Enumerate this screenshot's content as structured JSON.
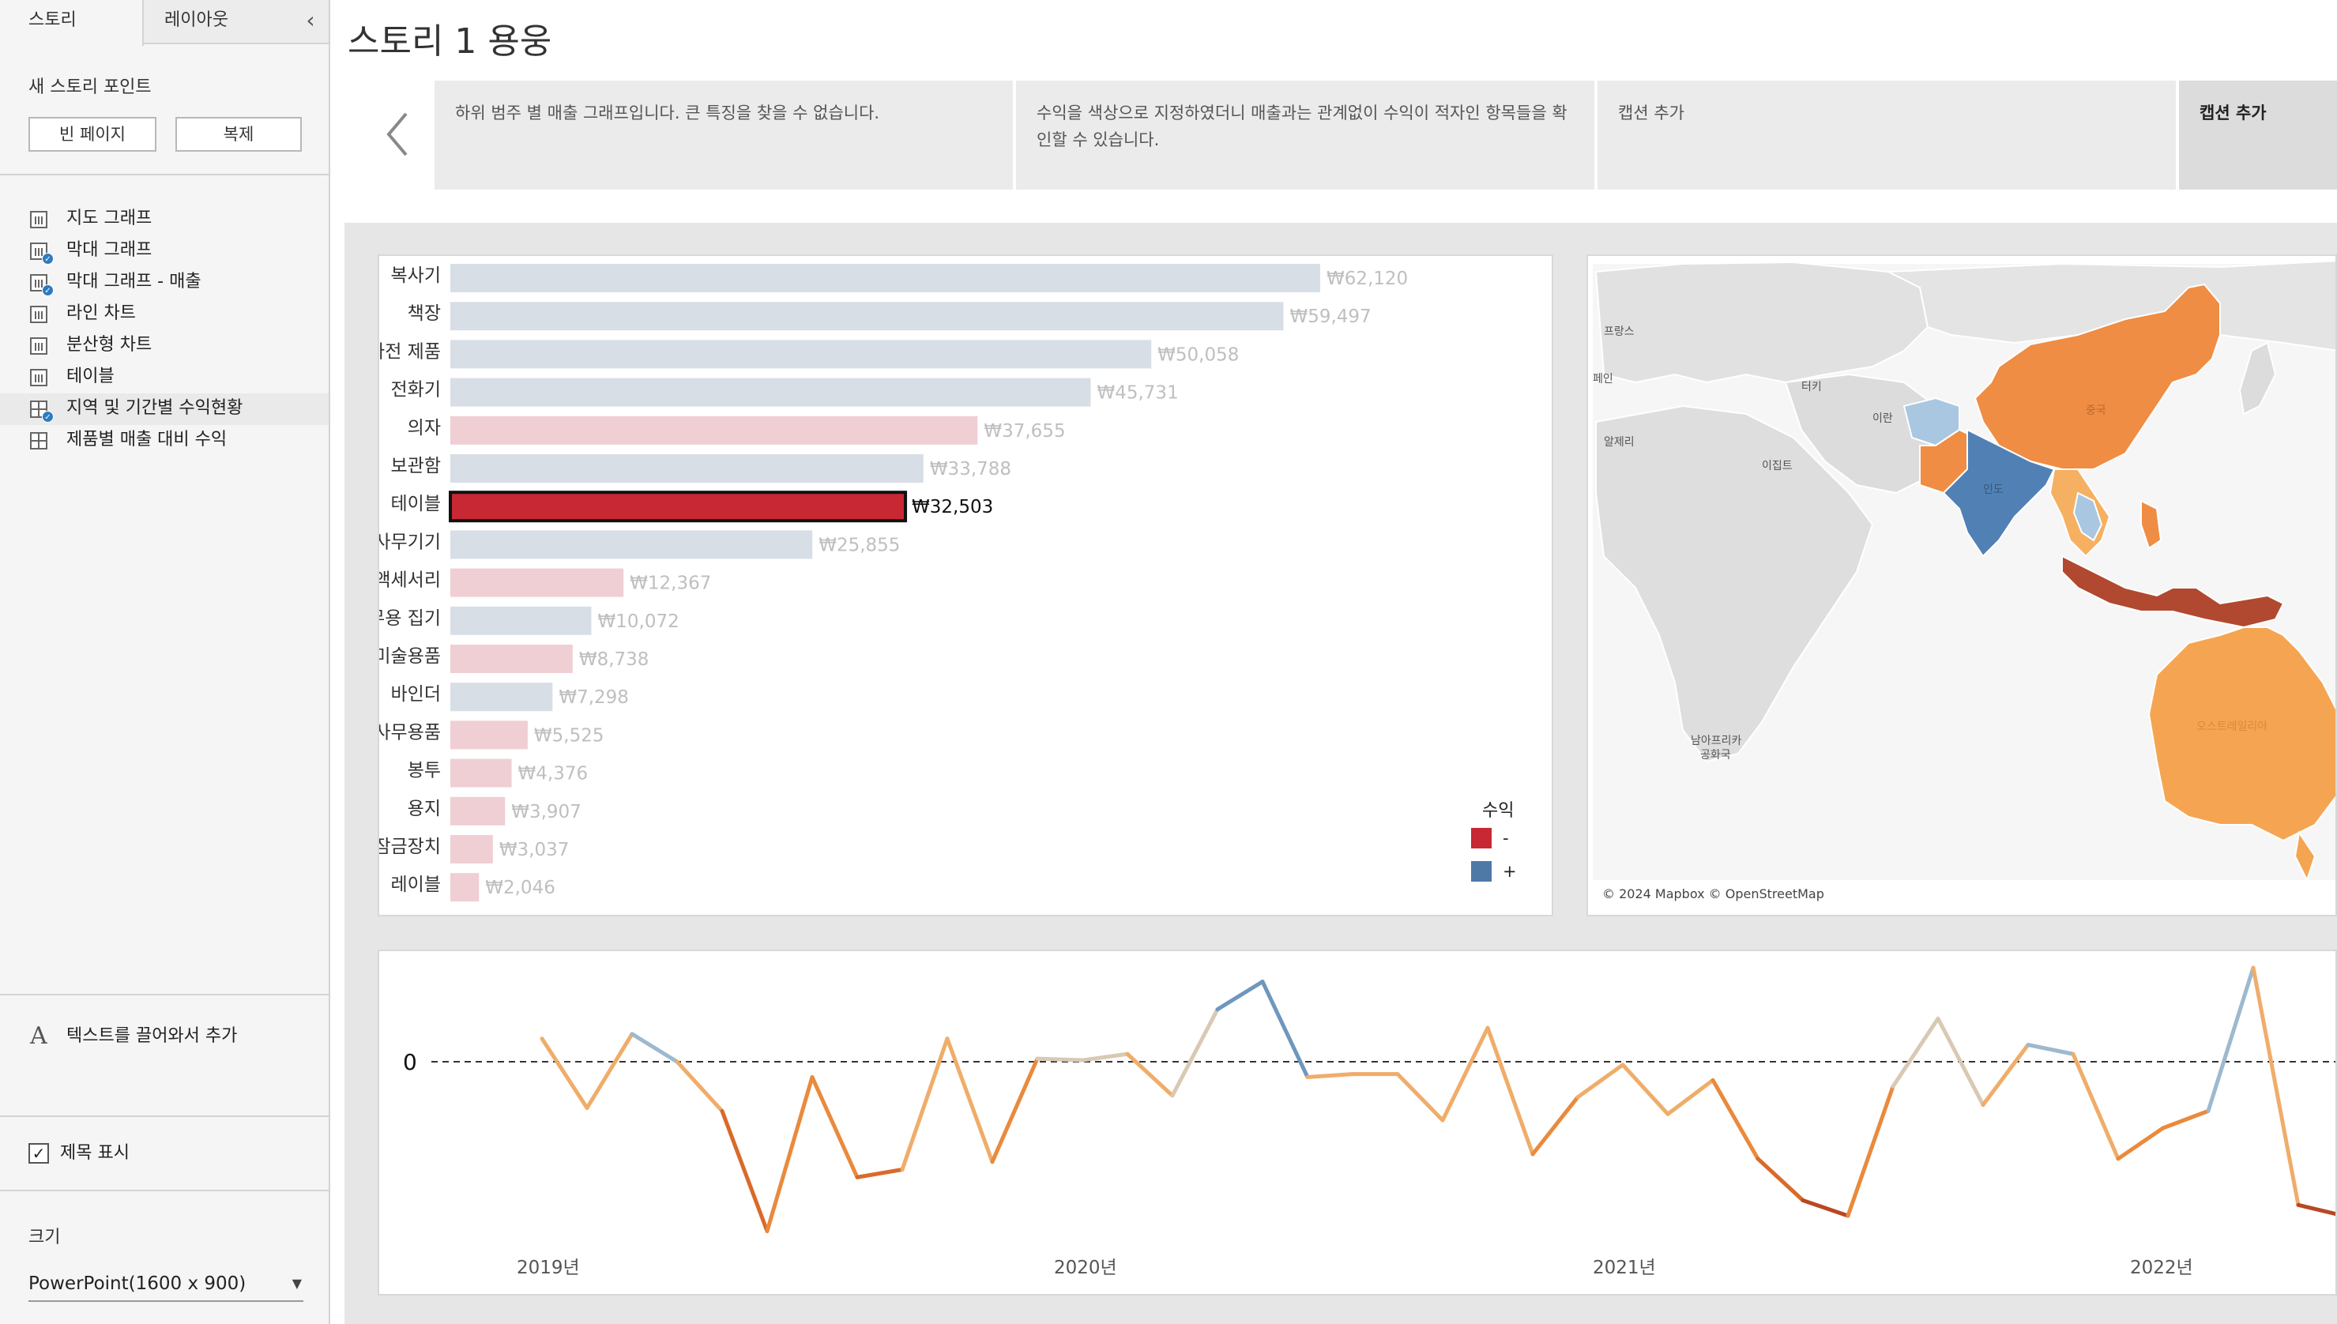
{
  "sidebar": {
    "tabs": [
      "스토리",
      "레이아웃"
    ],
    "collapse_icon": "chevron-left-icon",
    "new_story_point": "새 스토리 포인트",
    "buttons": {
      "blank": "빈 페이지",
      "duplicate": "복제"
    },
    "sheets": [
      {
        "label": "지도 그래프",
        "icon": "bar-chart-icon",
        "used": false
      },
      {
        "label": "막대 그래프",
        "icon": "bar-chart-icon",
        "used": true
      },
      {
        "label": "막대 그래프 - 매출",
        "icon": "bar-chart-icon",
        "used": true
      },
      {
        "label": "라인 차트",
        "icon": "bar-chart-icon",
        "used": false
      },
      {
        "label": "분산형 차트",
        "icon": "bar-chart-icon",
        "used": false
      },
      {
        "label": "테이블",
        "icon": "bar-chart-icon",
        "used": false
      },
      {
        "label": "지역 및 기간별 수익현황",
        "icon": "dashboard-icon",
        "used": true
      },
      {
        "label": "제품별 매출 대비 수익",
        "icon": "dashboard-icon",
        "used": false
      }
    ],
    "drag_text": "텍스트를 끌어와서 추가",
    "show_title": {
      "label": "제목 표시",
      "checked": true
    },
    "size": {
      "label": "크기",
      "value": "PowerPoint(1600 x 900)"
    }
  },
  "story": {
    "title": "스토리 1 용웅",
    "captions": [
      "하위 범주 별 매출 그래프입니다. 큰 특징을 찾을 수 없습니다.",
      "수익을 색상으로 지정하였더니 매출과는 관계없이 수익이 적자인 항목들을 확인할 수 있습니다.",
      "캡션 추가",
      "캡션 추가"
    ],
    "active_caption_index": 3
  },
  "colors": {
    "negative": "#c72833",
    "positive": "#4e79a7",
    "bar_neg_faded": "#efcfd3",
    "bar_pos_faded": "#d8dee6",
    "map_orange": "#ef8d44",
    "map_lightorange": "#f5b062",
    "map_brown": "#b0492f",
    "map_blue": "#5181b4",
    "map_lightblue": "#a9c7e0"
  },
  "chart_data": [
    {
      "type": "bar",
      "orientation": "horizontal",
      "categories": [
        "복사기",
        "책장",
        "가전 제품",
        "전화기",
        "의자",
        "보관함",
        "테이블",
        "사무기기",
        "액세서리",
        "사무용 집기",
        "미술용품",
        "바인더",
        "사무용품",
        "봉투",
        "용지",
        "잠금장치",
        "레이블"
      ],
      "values": [
        62120,
        59497,
        50058,
        45731,
        37655,
        33788,
        32503,
        25855,
        12367,
        10072,
        8738,
        7298,
        5525,
        4376,
        3907,
        3037,
        2046
      ],
      "labels": [
        "₩62,120",
        "₩59,497",
        "₩50,058",
        "₩45,731",
        "₩37,655",
        "₩33,788",
        "₩32,503",
        "₩25,855",
        "₩12,367",
        "₩10,072",
        "₩8,738",
        "₩7,298",
        "₩5,525",
        "₩4,376",
        "₩3,907",
        "₩3,037",
        "₩2,046"
      ],
      "profit_sign": [
        "+",
        "+",
        "+",
        "+",
        "-",
        "+",
        "-",
        "+",
        "-",
        "+",
        "-",
        "+",
        "-",
        "-",
        "-",
        "-",
        "-"
      ],
      "highlighted": "테이블",
      "legend": {
        "title": "수익",
        "items": [
          "-",
          "+"
        ]
      },
      "xlim": [
        0,
        65000
      ]
    },
    {
      "type": "line",
      "x_ticks": [
        "2019년",
        "2020년",
        "2021년",
        "2022년"
      ],
      "reference_line": {
        "value": 0,
        "label": "0"
      },
      "values": [
        1.5,
        -3,
        1.8,
        0,
        -3.2,
        -11,
        -1,
        -7.5,
        -7,
        1.5,
        -6.5,
        0.2,
        0.1,
        0.5,
        -2.2,
        3.4,
        5.2,
        -1,
        -0.8,
        -0.8,
        -3.8,
        2.2,
        -6,
        -2.3,
        -0.2,
        -3.4,
        -1.2,
        -6.3,
        -9,
        -10,
        -1.6,
        2.8,
        -2.8,
        1.1,
        0.5,
        -6.3,
        -4.3,
        -3.2,
        6.1,
        -9.3,
        -10
      ]
    }
  ],
  "map": {
    "labels": [
      "프랑스",
      "페인",
      "터키",
      "이란",
      "알제리",
      "이집트",
      "중국",
      "인도",
      "오스트레일리아",
      "남아프리카 공화국"
    ],
    "attribution": "© 2024 Mapbox © OpenStreetMap"
  }
}
